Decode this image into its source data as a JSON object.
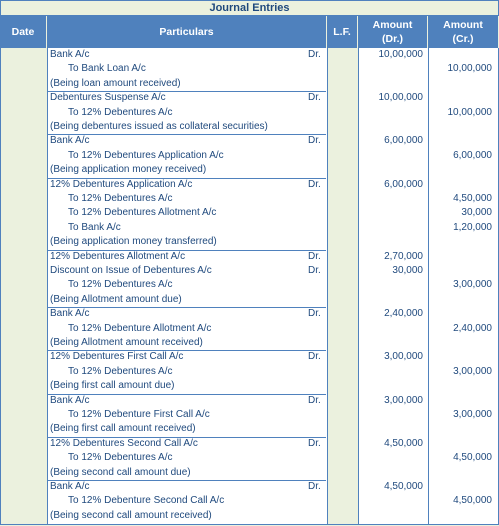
{
  "title": "Journal Entries",
  "headers": {
    "date": "Date",
    "particulars": "Particulars",
    "lf": "L.F.",
    "amount_dr_1": "Amount",
    "amount_dr_2": "(Dr.)",
    "amount_cr_1": "Amount",
    "amount_cr_2": "(Cr.)"
  },
  "entries": [
    {
      "lines": [
        {
          "text": "Bank A/c",
          "dr": "Dr.",
          "debit": "10,00,000"
        },
        {
          "text": "To Bank Loan A/c",
          "indent": true,
          "credit": "10,00,000"
        },
        {
          "text": "(Being loan amount received)"
        }
      ]
    },
    {
      "lines": [
        {
          "text": "Debentures Suspense A/c",
          "dr": "Dr.",
          "debit": "10,00,000"
        },
        {
          "text": "To 12% Debentures A/c",
          "indent": true,
          "credit": "10,00,000"
        },
        {
          "text": "(Being debentures issued as collateral securities)"
        }
      ]
    },
    {
      "lines": [
        {
          "text": "Bank A/c",
          "dr": "Dr.",
          "debit": "6,00,000"
        },
        {
          "text": "To 12% Debentures Application A/c",
          "indent": true,
          "credit": "6,00,000"
        },
        {
          "text": "(Being application money received)"
        }
      ]
    },
    {
      "lines": [
        {
          "text": "12% Debentures Application A/c",
          "dr": "Dr.",
          "debit": "6,00,000"
        },
        {
          "text": "To 12% Debentures A/c",
          "indent": true,
          "credit": "4,50,000"
        },
        {
          "text": "To 12% Debentures Allotment A/c",
          "indent": true,
          "credit": "30,000"
        },
        {
          "text": "To Bank A/c",
          "indent": true,
          "credit": "1,20,000"
        },
        {
          "text": "(Being application money transferred)"
        }
      ]
    },
    {
      "lines": [
        {
          "text": "12% Debentures Allotment A/c",
          "dr": "Dr.",
          "debit": "2,70,000"
        },
        {
          "text": "Discount on Issue of Debentures A/c",
          "dr": "Dr.",
          "debit": "30,000"
        },
        {
          "text": "To 12% Debentures A/c",
          "indent": true,
          "credit": "3,00,000"
        },
        {
          "text": "(Being Allotment amount due)"
        }
      ]
    },
    {
      "lines": [
        {
          "text": "Bank A/c",
          "dr": "Dr.",
          "debit": "2,40,000"
        },
        {
          "text": "To 12% Debenture Allotment A/c",
          "indent": true,
          "credit": "2,40,000"
        },
        {
          "text": "(Being Allotment amount received)"
        }
      ]
    },
    {
      "lines": [
        {
          "text": "12% Debentures First Call A/c",
          "dr": "Dr.",
          "debit": "3,00,000"
        },
        {
          "text": "To 12% Debentures A/c",
          "indent": true,
          "credit": "3,00,000"
        },
        {
          "text": "(Being first call amount due)"
        }
      ]
    },
    {
      "lines": [
        {
          "text": "Bank A/c",
          "dr": "Dr.",
          "debit": "3,00,000"
        },
        {
          "text": "To 12% Debenture First Call A/c",
          "indent": true,
          "credit": "3,00,000"
        },
        {
          "text": "(Being first call amount received)"
        }
      ]
    },
    {
      "lines": [
        {
          "text": "12% Debentures Second Call A/c",
          "dr": "Dr.",
          "debit": "4,50,000"
        },
        {
          "text": "To 12% Debentures A/c",
          "indent": true,
          "credit": "4,50,000"
        },
        {
          "text": "(Being second call amount due)"
        }
      ]
    },
    {
      "lines": [
        {
          "text": "Bank A/c",
          "dr": "Dr.",
          "debit": "4,50,000"
        },
        {
          "text": "To 12% Debenture Second Call A/c",
          "indent": true,
          "credit": "4,50,000"
        },
        {
          "text": "(Being second call amount received)"
        }
      ]
    }
  ]
}
